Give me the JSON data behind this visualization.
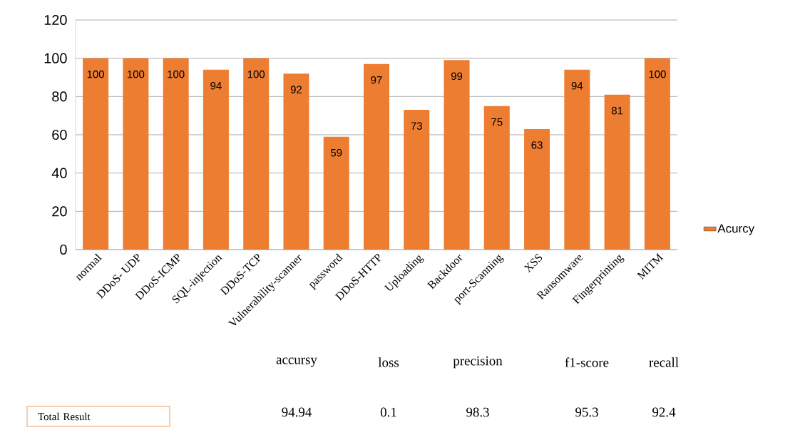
{
  "chart_data": {
    "type": "bar",
    "categories": [
      "normal",
      "DDoS- UDP",
      "DDoS-ICMP",
      "SQL-injection",
      "DDoS-TCP",
      "Vulnerability-scanner",
      "password",
      "DDoS-HTTP",
      "Uploading",
      "Backdoor",
      "port-Scanning",
      "XSS",
      "Ransomware",
      "Fingerprinting",
      "MITM"
    ],
    "series": [
      {
        "name": "Acurcy",
        "color": "#ed7d31",
        "values": [
          100,
          100,
          100,
          94,
          100,
          92,
          59,
          97,
          73,
          99,
          75,
          63,
          94,
          81,
          100
        ]
      }
    ],
    "ylim": [
      0,
      120
    ],
    "yticks": [
      0,
      20,
      40,
      60,
      80,
      100,
      120
    ],
    "grid": "y",
    "legend": "right",
    "data_labels": true,
    "annotations": [
      "accursy",
      "loss",
      "precision",
      "f1-score",
      "recall",
      "Total  Result",
      "94.94",
      "0.1",
      "98.3",
      "95.3",
      "92.4"
    ]
  }
}
